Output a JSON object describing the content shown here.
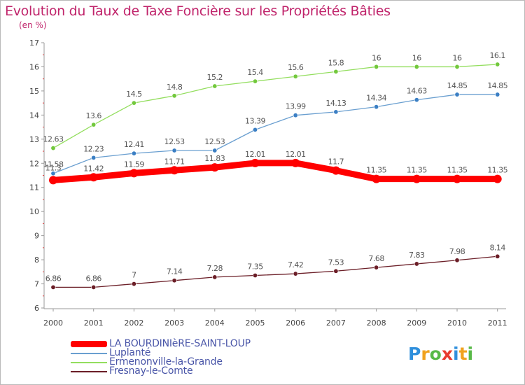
{
  "header": {
    "title": "Evolution du Taux de Taxe Foncière sur les Propriétés Bâties",
    "unit": "(en %)"
  },
  "legend": [
    {
      "label": "LA BOURDINIèRE-SAINT-LOUP",
      "color": "#ff0000"
    },
    {
      "label": "Luplanté",
      "color": "#6a9fd0"
    },
    {
      "label": "Ermenonville-la-Grande",
      "color": "#93de5e"
    },
    {
      "label": "Fresnay-le-Comte",
      "color": "#6b1e27"
    }
  ],
  "logo": {
    "letters": [
      "P",
      "r",
      "o",
      "x",
      "i",
      "t",
      "i"
    ],
    "colors": [
      "#2f8fdc",
      "#f0a21e",
      "#58b947",
      "#e83b2e",
      "#2f8fdc",
      "#f0a21e",
      "#58b947"
    ]
  },
  "chart_data": {
    "type": "line",
    "categories": [
      "2000",
      "2001",
      "2002",
      "2003",
      "2004",
      "2005",
      "2006",
      "2007",
      "2008",
      "2009",
      "2010",
      "2011"
    ],
    "ylim": [
      6,
      17
    ],
    "yticks": [
      "6",
      "7",
      "8",
      "9",
      "10",
      "11",
      "12",
      "13",
      "14",
      "15",
      "16",
      "17"
    ],
    "grid": false,
    "series": [
      {
        "name": "LA BOURDINIèRE-SAINT-LOUP",
        "color": "#ff0000",
        "marker": "#ff0000",
        "values": [
          11.3,
          11.42,
          11.59,
          11.71,
          11.83,
          12.01,
          12.01,
          11.7,
          11.35,
          11.35,
          11.35,
          11.35
        ],
        "labels": [
          "11.3",
          "11.42",
          "11.59",
          "11.71",
          "11.83",
          "12.01",
          "12.01",
          "11.7",
          "11.35",
          "11.35",
          "11.35",
          "11.35"
        ]
      },
      {
        "name": "Luplanté",
        "color": "#6a9fd0",
        "marker": "#3b7fc4",
        "values": [
          11.58,
          12.23,
          12.41,
          12.53,
          12.53,
          13.39,
          13.99,
          14.13,
          14.34,
          14.63,
          14.85,
          14.85
        ],
        "labels": [
          "11.58",
          "12.23",
          "12.41",
          "12.53",
          "12.53",
          "13.39",
          "13.99",
          "14.13",
          "14.34",
          "14.63",
          "14.85",
          "14.85"
        ]
      },
      {
        "name": "Ermenonville-la-Grande",
        "color": "#93de5e",
        "marker": "#72c83c",
        "values": [
          12.63,
          13.6,
          14.5,
          14.8,
          15.2,
          15.4,
          15.6,
          15.8,
          16,
          16,
          16,
          16.1
        ],
        "labels": [
          "12.63",
          "13.6",
          "14.5",
          "14.8",
          "15.2",
          "15.4",
          "15.6",
          "15.8",
          "16",
          "16",
          "16",
          "16.1"
        ]
      },
      {
        "name": "Fresnay-le-Comte",
        "color": "#6b1e27",
        "marker": "#6b1e27",
        "values": [
          6.86,
          6.86,
          7,
          7.14,
          7.28,
          7.35,
          7.42,
          7.53,
          7.68,
          7.83,
          7.98,
          8.14
        ],
        "labels": [
          "6.86",
          "6.86",
          "7",
          "7.14",
          "7.28",
          "7.35",
          "7.42",
          "7.53",
          "7.68",
          "7.83",
          "7.98",
          "8.14"
        ]
      }
    ]
  }
}
